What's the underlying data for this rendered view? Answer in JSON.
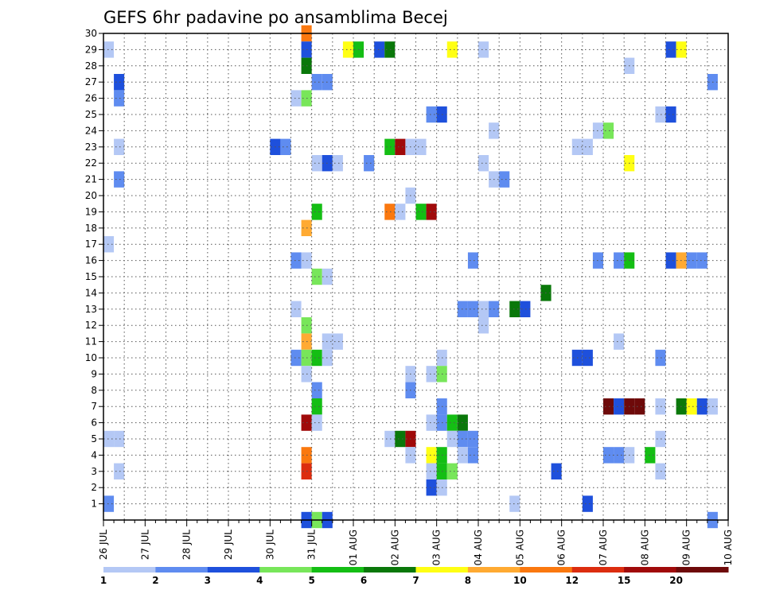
{
  "chart_data": {
    "type": "heatmap",
    "title": "GEFS 6hr padavine po ansamblima Becej",
    "xlabel": "",
    "ylabel": "",
    "x_tick_labels": [
      "26 JUL",
      "27 JUL",
      "28 JUL",
      "29 JUL",
      "30 JUL",
      "31 JUL",
      "01 AUG",
      "02 AUG",
      "03 AUG",
      "04 AUG",
      "05 AUG",
      "06 AUG",
      "07 AUG",
      "08 AUG",
      "09 AUG",
      "10 AUG"
    ],
    "y_tick_labels": [
      "1",
      "2",
      "3",
      "4",
      "5",
      "6",
      "7",
      "8",
      "9",
      "10",
      "11",
      "12",
      "13",
      "14",
      "15",
      "16",
      "17",
      "18",
      "19",
      "20",
      "21",
      "22",
      "23",
      "24",
      "25",
      "26",
      "27",
      "28",
      "29",
      "30"
    ],
    "xlim": [
      0,
      60
    ],
    "ylim": [
      0,
      30
    ],
    "grid": true,
    "colorbar": {
      "labels": [
        "1",
        "2",
        "3",
        "4",
        "5",
        "6",
        "7",
        "8",
        "10",
        "12",
        "15",
        "20"
      ],
      "colors": [
        "#b4c8f5",
        "#5f8cf0",
        "#1e50dc",
        "#78e65a",
        "#14be14",
        "#0a780a",
        "#ffff14",
        "#ffaa32",
        "#fa780f",
        "#dc2d0f",
        "#a00a0a",
        "#6e0a0a"
      ]
    },
    "cells": [
      {
        "t": 0.5,
        "m": 29,
        "c": 1
      },
      {
        "t": 0.5,
        "m": 17,
        "c": 1
      },
      {
        "t": 0.5,
        "m": 5,
        "c": 1
      },
      {
        "t": 0.5,
        "m": 1,
        "c": 2
      },
      {
        "t": 1.5,
        "m": 27,
        "c": 3
      },
      {
        "t": 1.5,
        "m": 26,
        "c": 2
      },
      {
        "t": 1.5,
        "m": 23,
        "c": 1
      },
      {
        "t": 1.5,
        "m": 21,
        "c": 2
      },
      {
        "t": 1.5,
        "m": 5,
        "c": 1
      },
      {
        "t": 1.5,
        "m": 3,
        "c": 1
      },
      {
        "t": 16.5,
        "m": 23,
        "c": 3
      },
      {
        "t": 17.5,
        "m": 23,
        "c": 2
      },
      {
        "t": 18.5,
        "m": 26,
        "c": 1
      },
      {
        "t": 18.5,
        "m": 16,
        "c": 2
      },
      {
        "t": 18.5,
        "m": 13,
        "c": 1
      },
      {
        "t": 18.5,
        "m": 10,
        "c": 2
      },
      {
        "t": 19.5,
        "m": 30,
        "c": 9
      },
      {
        "t": 19.5,
        "m": 29,
        "c": 3
      },
      {
        "t": 19.5,
        "m": 28,
        "c": 6
      },
      {
        "t": 19.5,
        "m": 26,
        "c": 4
      },
      {
        "t": 19.5,
        "m": 18,
        "c": 8
      },
      {
        "t": 19.5,
        "m": 16,
        "c": 1
      },
      {
        "t": 19.5,
        "m": 12,
        "c": 4
      },
      {
        "t": 19.5,
        "m": 11,
        "c": 8
      },
      {
        "t": 19.5,
        "m": 10,
        "c": 4
      },
      {
        "t": 19.5,
        "m": 9,
        "c": 1
      },
      {
        "t": 19.5,
        "m": 6,
        "c": 11
      },
      {
        "t": 19.5,
        "m": 4,
        "c": 9
      },
      {
        "t": 19.5,
        "m": 3,
        "c": 10
      },
      {
        "t": 19.5,
        "m": 0,
        "c": 3
      },
      {
        "t": 20.5,
        "m": 27,
        "c": 2
      },
      {
        "t": 20.5,
        "m": 22,
        "c": 1
      },
      {
        "t": 20.5,
        "m": 19,
        "c": 5
      },
      {
        "t": 20.5,
        "m": 15,
        "c": 4
      },
      {
        "t": 20.5,
        "m": 10,
        "c": 5
      },
      {
        "t": 20.5,
        "m": 8,
        "c": 2
      },
      {
        "t": 20.5,
        "m": 7,
        "c": 5
      },
      {
        "t": 20.5,
        "m": 6,
        "c": 1
      },
      {
        "t": 20.5,
        "m": 0,
        "c": 4
      },
      {
        "t": 21.5,
        "m": 27,
        "c": 2
      },
      {
        "t": 21.5,
        "m": 22,
        "c": 3
      },
      {
        "t": 21.5,
        "m": 15,
        "c": 1
      },
      {
        "t": 21.5,
        "m": 11,
        "c": 1
      },
      {
        "t": 21.5,
        "m": 10,
        "c": 1
      },
      {
        "t": 21.5,
        "m": 0,
        "c": 3
      },
      {
        "t": 22.5,
        "m": 22,
        "c": 1
      },
      {
        "t": 22.5,
        "m": 11,
        "c": 1
      },
      {
        "t": 23.5,
        "m": 29,
        "c": 7
      },
      {
        "t": 24.5,
        "m": 29,
        "c": 5
      },
      {
        "t": 25.5,
        "m": 22,
        "c": 2
      },
      {
        "t": 26.5,
        "m": 29,
        "c": 3
      },
      {
        "t": 27.5,
        "m": 29,
        "c": 6
      },
      {
        "t": 27.5,
        "m": 23,
        "c": 5
      },
      {
        "t": 27.5,
        "m": 19,
        "c": 9
      },
      {
        "t": 27.5,
        "m": 5,
        "c": 1
      },
      {
        "t": 28.5,
        "m": 23,
        "c": 11
      },
      {
        "t": 28.5,
        "m": 19,
        "c": 1
      },
      {
        "t": 28.5,
        "m": 5,
        "c": 6
      },
      {
        "t": 29.5,
        "m": 23,
        "c": 1
      },
      {
        "t": 29.5,
        "m": 20,
        "c": 1
      },
      {
        "t": 29.5,
        "m": 9,
        "c": 1
      },
      {
        "t": 29.5,
        "m": 8,
        "c": 2
      },
      {
        "t": 29.5,
        "m": 5,
        "c": 11
      },
      {
        "t": 29.5,
        "m": 4,
        "c": 1
      },
      {
        "t": 30.5,
        "m": 23,
        "c": 1
      },
      {
        "t": 30.5,
        "m": 19,
        "c": 5
      },
      {
        "t": 31.5,
        "m": 25,
        "c": 2
      },
      {
        "t": 31.5,
        "m": 19,
        "c": 11
      },
      {
        "t": 31.5,
        "m": 9,
        "c": 1
      },
      {
        "t": 31.5,
        "m": 6,
        "c": 1
      },
      {
        "t": 31.5,
        "m": 4,
        "c": 7
      },
      {
        "t": 31.5,
        "m": 3,
        "c": 1
      },
      {
        "t": 31.5,
        "m": 2,
        "c": 3
      },
      {
        "t": 32.5,
        "m": 25,
        "c": 3
      },
      {
        "t": 32.5,
        "m": 10,
        "c": 1
      },
      {
        "t": 32.5,
        "m": 9,
        "c": 4
      },
      {
        "t": 32.5,
        "m": 7,
        "c": 2
      },
      {
        "t": 32.5,
        "m": 6,
        "c": 2
      },
      {
        "t": 32.5,
        "m": 4,
        "c": 5
      },
      {
        "t": 32.5,
        "m": 3,
        "c": 5
      },
      {
        "t": 32.5,
        "m": 2,
        "c": 1
      },
      {
        "t": 33.5,
        "m": 29,
        "c": 7
      },
      {
        "t": 33.5,
        "m": 6,
        "c": 5
      },
      {
        "t": 33.5,
        "m": 5,
        "c": 1
      },
      {
        "t": 33.5,
        "m": 3,
        "c": 4
      },
      {
        "t": 34.5,
        "m": 13,
        "c": 2
      },
      {
        "t": 34.5,
        "m": 6,
        "c": 6
      },
      {
        "t": 34.5,
        "m": 5,
        "c": 2
      },
      {
        "t": 34.5,
        "m": 4,
        "c": 1
      },
      {
        "t": 35.5,
        "m": 16,
        "c": 2
      },
      {
        "t": 35.5,
        "m": 13,
        "c": 2
      },
      {
        "t": 35.5,
        "m": 5,
        "c": 2
      },
      {
        "t": 35.5,
        "m": 4,
        "c": 2
      },
      {
        "t": 36.5,
        "m": 29,
        "c": 1
      },
      {
        "t": 36.5,
        "m": 22,
        "c": 1
      },
      {
        "t": 36.5,
        "m": 13,
        "c": 1
      },
      {
        "t": 36.5,
        "m": 12,
        "c": 1
      },
      {
        "t": 37.5,
        "m": 24,
        "c": 1
      },
      {
        "t": 37.5,
        "m": 21,
        "c": 1
      },
      {
        "t": 37.5,
        "m": 13,
        "c": 2
      },
      {
        "t": 38.5,
        "m": 21,
        "c": 2
      },
      {
        "t": 39.5,
        "m": 13,
        "c": 6
      },
      {
        "t": 40.5,
        "m": 13,
        "c": 3
      },
      {
        "t": 39.5,
        "m": 1,
        "c": 1
      },
      {
        "t": 42.5,
        "m": 14,
        "c": 6
      },
      {
        "t": 43.5,
        "m": 3,
        "c": 3
      },
      {
        "t": 45.5,
        "m": 23,
        "c": 1
      },
      {
        "t": 46.5,
        "m": 23,
        "c": 1
      },
      {
        "t": 45.5,
        "m": 10,
        "c": 3
      },
      {
        "t": 46.5,
        "m": 10,
        "c": 3
      },
      {
        "t": 46.5,
        "m": 1,
        "c": 3
      },
      {
        "t": 47.5,
        "m": 24,
        "c": 1
      },
      {
        "t": 47.5,
        "m": 16,
        "c": 2
      },
      {
        "t": 48.5,
        "m": 24,
        "c": 4
      },
      {
        "t": 48.5,
        "m": 7,
        "c": 12
      },
      {
        "t": 48.5,
        "m": 4,
        "c": 2
      },
      {
        "t": 49.5,
        "m": 16,
        "c": 2
      },
      {
        "t": 49.5,
        "m": 11,
        "c": 1
      },
      {
        "t": 49.5,
        "m": 7,
        "c": 3
      },
      {
        "t": 49.5,
        "m": 4,
        "c": 2
      },
      {
        "t": 50.5,
        "m": 28,
        "c": 1
      },
      {
        "t": 50.5,
        "m": 22,
        "c": 7
      },
      {
        "t": 50.5,
        "m": 16,
        "c": 5
      },
      {
        "t": 50.5,
        "m": 7,
        "c": 12
      },
      {
        "t": 50.5,
        "m": 4,
        "c": 1
      },
      {
        "t": 51.5,
        "m": 7,
        "c": 12
      },
      {
        "t": 52.5,
        "m": 4,
        "c": 5
      },
      {
        "t": 53.5,
        "m": 25,
        "c": 1
      },
      {
        "t": 53.5,
        "m": 10,
        "c": 2
      },
      {
        "t": 53.5,
        "m": 7,
        "c": 1
      },
      {
        "t": 53.5,
        "m": 5,
        "c": 1
      },
      {
        "t": 53.5,
        "m": 3,
        "c": 1
      },
      {
        "t": 54.5,
        "m": 29,
        "c": 3
      },
      {
        "t": 54.5,
        "m": 25,
        "c": 3
      },
      {
        "t": 54.5,
        "m": 16,
        "c": 3
      },
      {
        "t": 55.5,
        "m": 29,
        "c": 7
      },
      {
        "t": 55.5,
        "m": 16,
        "c": 8
      },
      {
        "t": 55.5,
        "m": 7,
        "c": 6
      },
      {
        "t": 56.5,
        "m": 16,
        "c": 2
      },
      {
        "t": 56.5,
        "m": 7,
        "c": 7
      },
      {
        "t": 57.5,
        "m": 16,
        "c": 2
      },
      {
        "t": 57.5,
        "m": 7,
        "c": 3
      },
      {
        "t": 58.5,
        "m": 27,
        "c": 2
      },
      {
        "t": 58.5,
        "m": 7,
        "c": 1
      },
      {
        "t": 58.5,
        "m": 0,
        "c": 2
      }
    ]
  }
}
